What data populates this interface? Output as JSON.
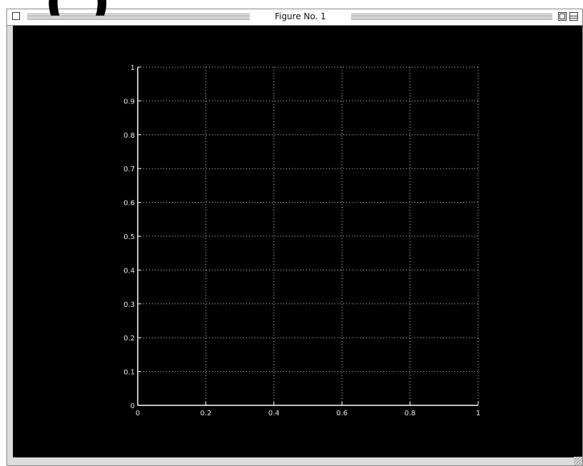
{
  "heading_fragment": "(          )",
  "window": {
    "title": "Figure No. 1"
  },
  "icons": {
    "close": "close-box-icon",
    "zoom": "zoom-box-icon",
    "collapse": "collapse-box-icon",
    "resize": "resize-grip-icon"
  },
  "colors": {
    "plot_background": "#000000",
    "axis": "#ffffff",
    "grid": "#cfcfcf",
    "window_frame": "#dcdcdc"
  },
  "chart_data": {
    "type": "line",
    "series": [],
    "xlim": [
      0,
      1
    ],
    "ylim": [
      0,
      1
    ],
    "x_ticks": [
      0,
      0.2,
      0.4,
      0.6,
      0.8,
      1
    ],
    "x_tick_labels": [
      "0",
      "0.2",
      "0.4",
      "0.6",
      "0.8",
      "1"
    ],
    "y_ticks": [
      0,
      0.1,
      0.2,
      0.3,
      0.4,
      0.5,
      0.6,
      0.7,
      0.8,
      0.9,
      1
    ],
    "y_tick_labels": [
      "0",
      "0.1",
      "0.2",
      "0.3",
      "0.4",
      "0.5",
      "0.6",
      "0.7",
      "0.8",
      "0.9",
      "1"
    ],
    "grid": true,
    "grid_style": "dotted"
  }
}
